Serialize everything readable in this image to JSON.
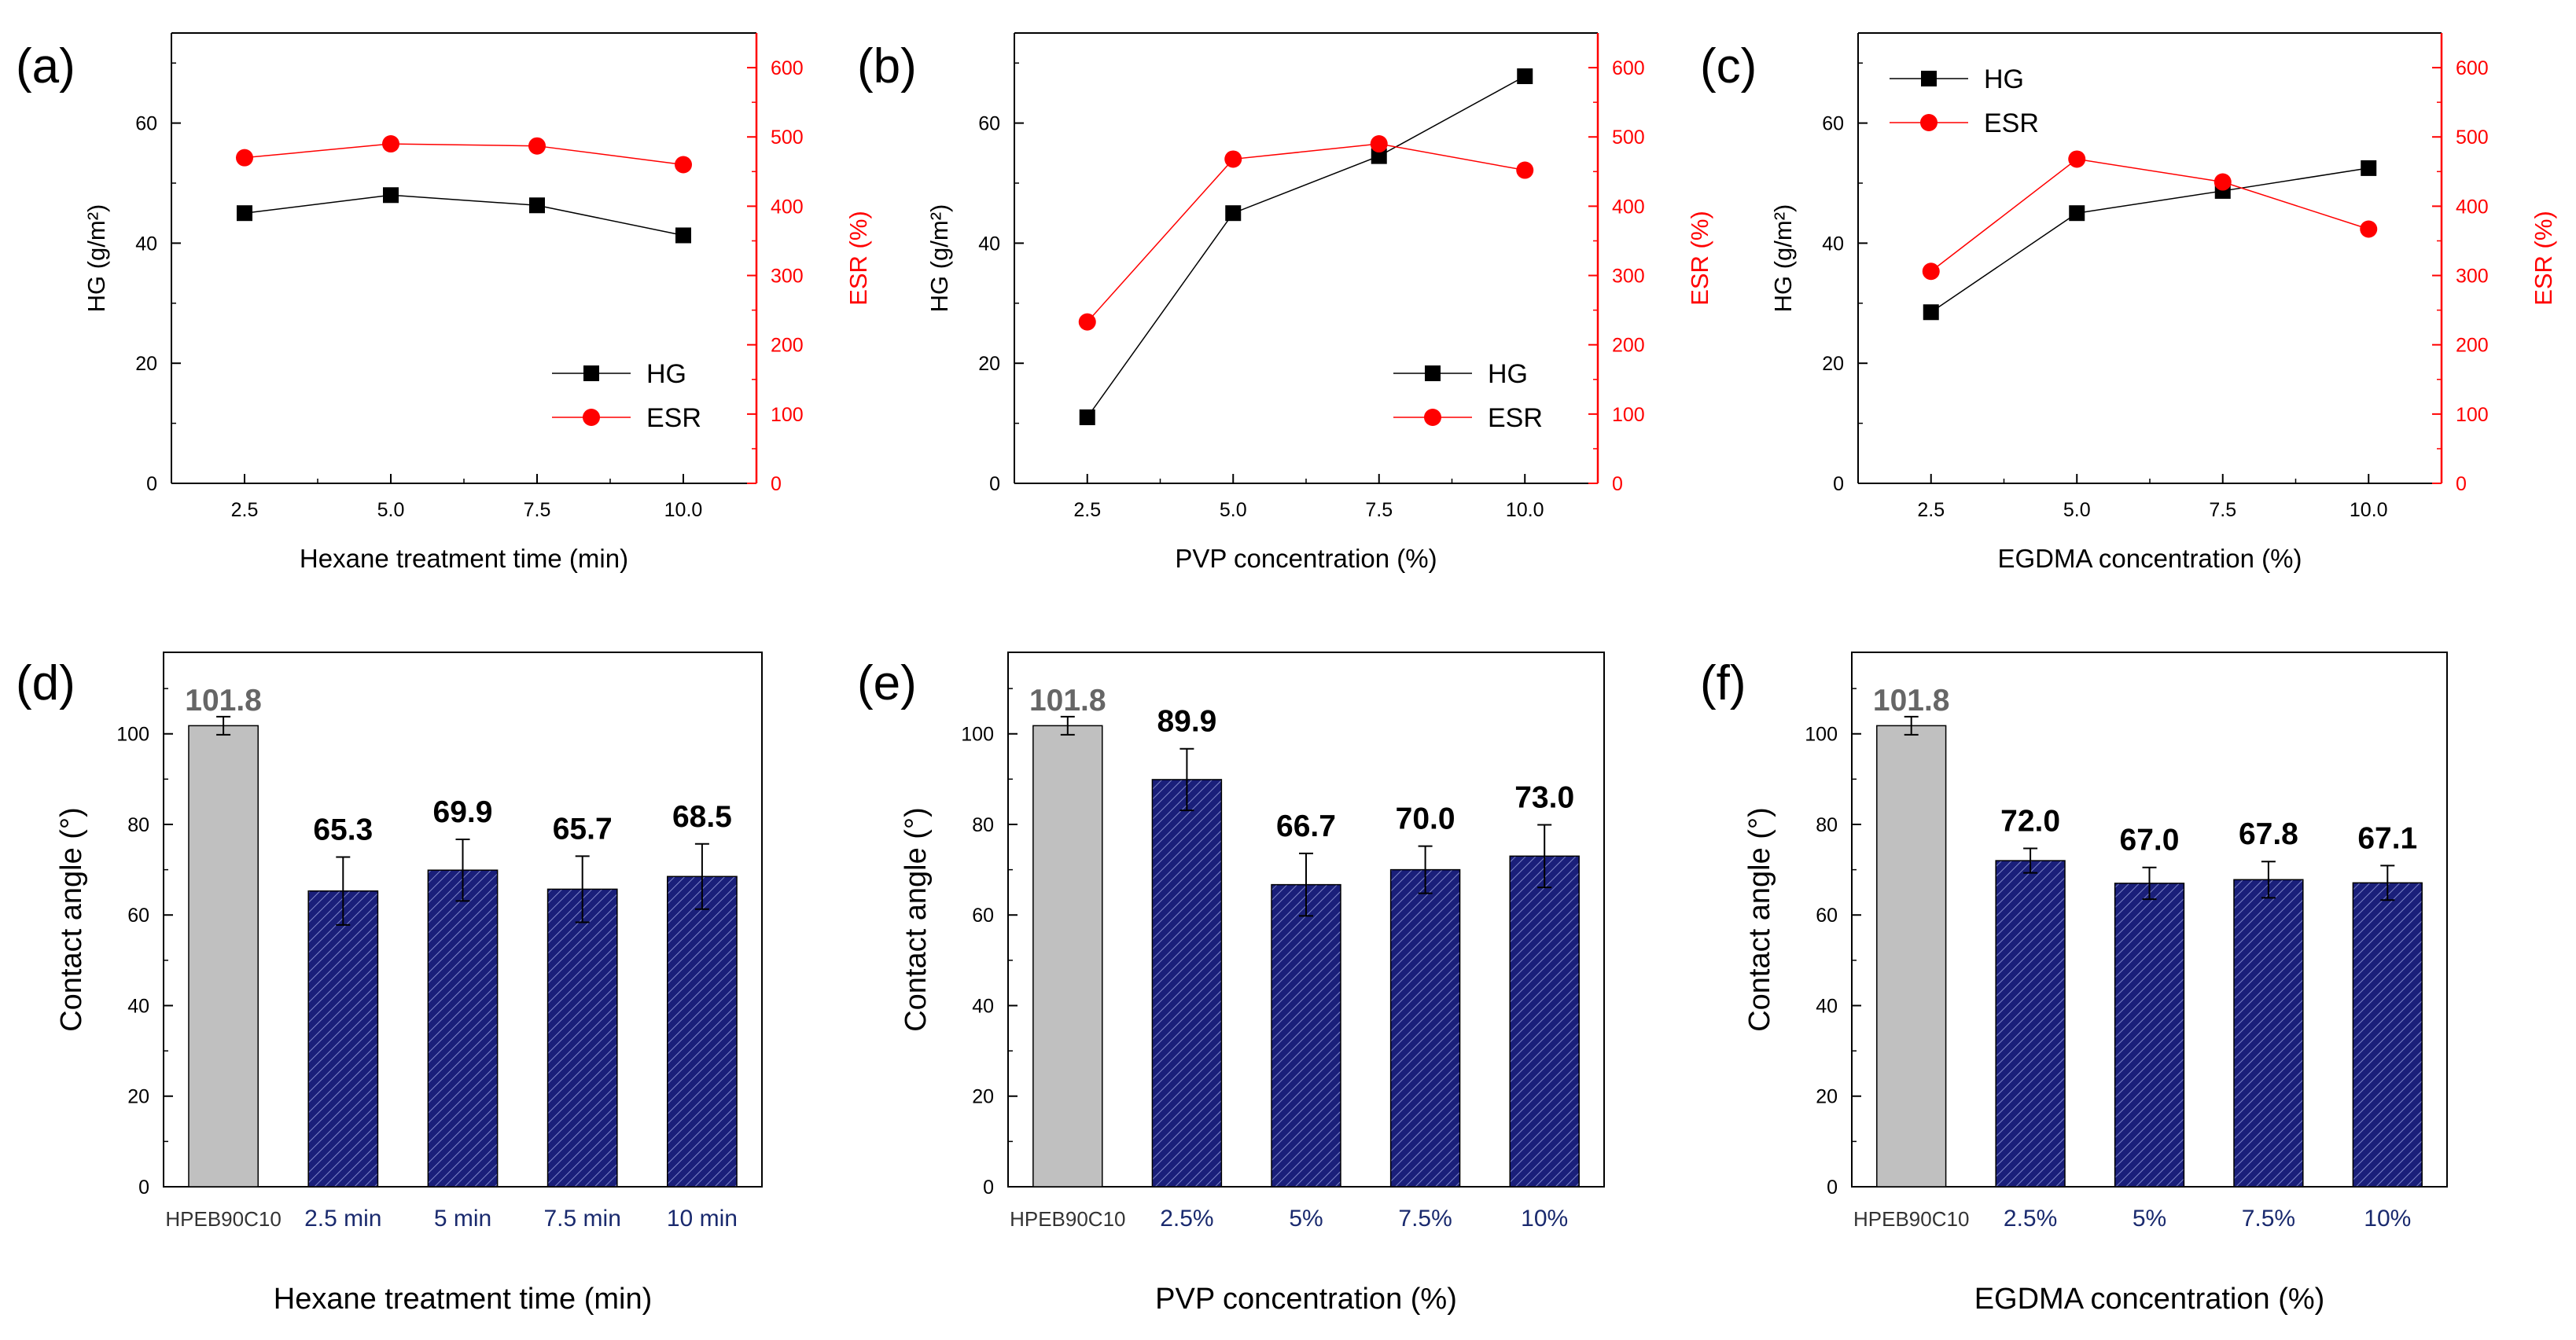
{
  "colors": {
    "hg": "#000000",
    "esr": "#ff0000",
    "control_bar": "#c0c0c0",
    "treatment_bar": "#1a1f7a",
    "treatment_label": "#1a2a6e",
    "control_value": "#666666",
    "axis": "#000000"
  },
  "chart_data": [
    {
      "type": "line",
      "panel": "(a)",
      "x": [
        2.5,
        5.0,
        7.5,
        10.0
      ],
      "xticks": [
        "2.5",
        "5.0",
        "7.5",
        "10.0"
      ],
      "xlabel": "Hexane treatment time (min)",
      "ylabel_left": "HG (g/m²)",
      "ylabel_right": "ESR (%)",
      "ylim_left": [
        0,
        75
      ],
      "yticks_left": [
        "0",
        "20",
        "40",
        "60"
      ],
      "ylim_right": [
        0,
        650
      ],
      "yticks_right": [
        "0",
        "100",
        "200",
        "300",
        "400",
        "500",
        "600"
      ],
      "series": [
        {
          "name": "HG",
          "axis": "left",
          "marker": "square",
          "values": [
            45.0,
            48.0,
            46.3,
            41.3
          ]
        },
        {
          "name": "ESR",
          "axis": "right",
          "marker": "circle",
          "values": [
            470,
            490,
            487,
            460
          ]
        }
      ],
      "legend_position": "lower-right"
    },
    {
      "type": "line",
      "panel": "(b)",
      "x": [
        2.5,
        5.0,
        7.5,
        10.0
      ],
      "xticks": [
        "2.5",
        "5.0",
        "7.5",
        "10.0"
      ],
      "xlabel": "PVP concentration (%)",
      "ylabel_left": "HG (g/m²)",
      "ylabel_right": "ESR (%)",
      "ylim_left": [
        0,
        75
      ],
      "yticks_left": [
        "0",
        "20",
        "40",
        "60"
      ],
      "ylim_right": [
        0,
        650
      ],
      "yticks_right": [
        "0",
        "100",
        "200",
        "300",
        "400",
        "500",
        "600"
      ],
      "series": [
        {
          "name": "HG",
          "axis": "left",
          "marker": "square",
          "values": [
            11.0,
            45.0,
            54.5,
            67.8
          ]
        },
        {
          "name": "ESR",
          "axis": "right",
          "marker": "circle",
          "values": [
            233,
            468,
            490,
            452
          ]
        }
      ],
      "legend_position": "lower-right"
    },
    {
      "type": "line",
      "panel": "(c)",
      "x": [
        2.5,
        5.0,
        7.5,
        10.0
      ],
      "xticks": [
        "2.5",
        "5.0",
        "7.5",
        "10.0"
      ],
      "xlabel": "EGDMA concentration (%)",
      "ylabel_left": "HG (g/m²)",
      "ylabel_right": "ESR (%)",
      "ylim_left": [
        0,
        75
      ],
      "yticks_left": [
        "0",
        "20",
        "40",
        "60"
      ],
      "ylim_right": [
        0,
        650
      ],
      "yticks_right": [
        "0",
        "100",
        "200",
        "300",
        "400",
        "500",
        "600"
      ],
      "series": [
        {
          "name": "HG",
          "axis": "left",
          "marker": "square",
          "values": [
            28.5,
            45.0,
            48.7,
            52.5
          ]
        },
        {
          "name": "ESR",
          "axis": "right",
          "marker": "circle",
          "values": [
            306,
            468,
            435,
            367
          ]
        }
      ],
      "legend_position": "top-left"
    },
    {
      "type": "bar",
      "panel": "(d)",
      "categories": [
        "HPEB90C10",
        "2.5 min",
        "5 min",
        "7.5 min",
        "10 min"
      ],
      "values": [
        101.8,
        65.3,
        69.9,
        65.7,
        68.5
      ],
      "value_labels": [
        "101.8",
        "65.3",
        "69.9",
        "65.7",
        "68.5"
      ],
      "errors": [
        2.0,
        7.5,
        6.8,
        7.3,
        7.2
      ],
      "xlabel": "Hexane treatment time (min)",
      "ylabel": "Contact angle (°)",
      "ylim": [
        0,
        118
      ],
      "yticks": [
        "0",
        "20",
        "40",
        "60",
        "80",
        "100"
      ]
    },
    {
      "type": "bar",
      "panel": "(e)",
      "categories": [
        "HPEB90C10",
        "2.5%",
        "5%",
        "7.5%",
        "10%"
      ],
      "values": [
        101.8,
        89.9,
        66.7,
        70.0,
        73.0
      ],
      "value_labels": [
        "101.8",
        "89.9",
        "66.7",
        "70.0",
        "73.0"
      ],
      "errors": [
        2.0,
        6.8,
        6.9,
        5.2,
        6.9
      ],
      "xlabel": "PVP concentration (%)",
      "ylabel": "Contact angle (°)",
      "ylim": [
        0,
        118
      ],
      "yticks": [
        "0",
        "20",
        "40",
        "60",
        "80",
        "100"
      ]
    },
    {
      "type": "bar",
      "panel": "(f)",
      "categories": [
        "HPEB90C10",
        "2.5%",
        "5%",
        "7.5%",
        "10%"
      ],
      "values": [
        101.8,
        72.0,
        67.0,
        67.8,
        67.1
      ],
      "value_labels": [
        "101.8",
        "72.0",
        "67.0",
        "67.8",
        "67.1"
      ],
      "errors": [
        2.0,
        2.7,
        3.5,
        4.0,
        3.8
      ],
      "xlabel": "EGDMA concentration (%)",
      "ylabel": "Contact angle (°)",
      "ylim": [
        0,
        118
      ],
      "yticks": [
        "0",
        "20",
        "40",
        "60",
        "80",
        "100"
      ]
    }
  ]
}
